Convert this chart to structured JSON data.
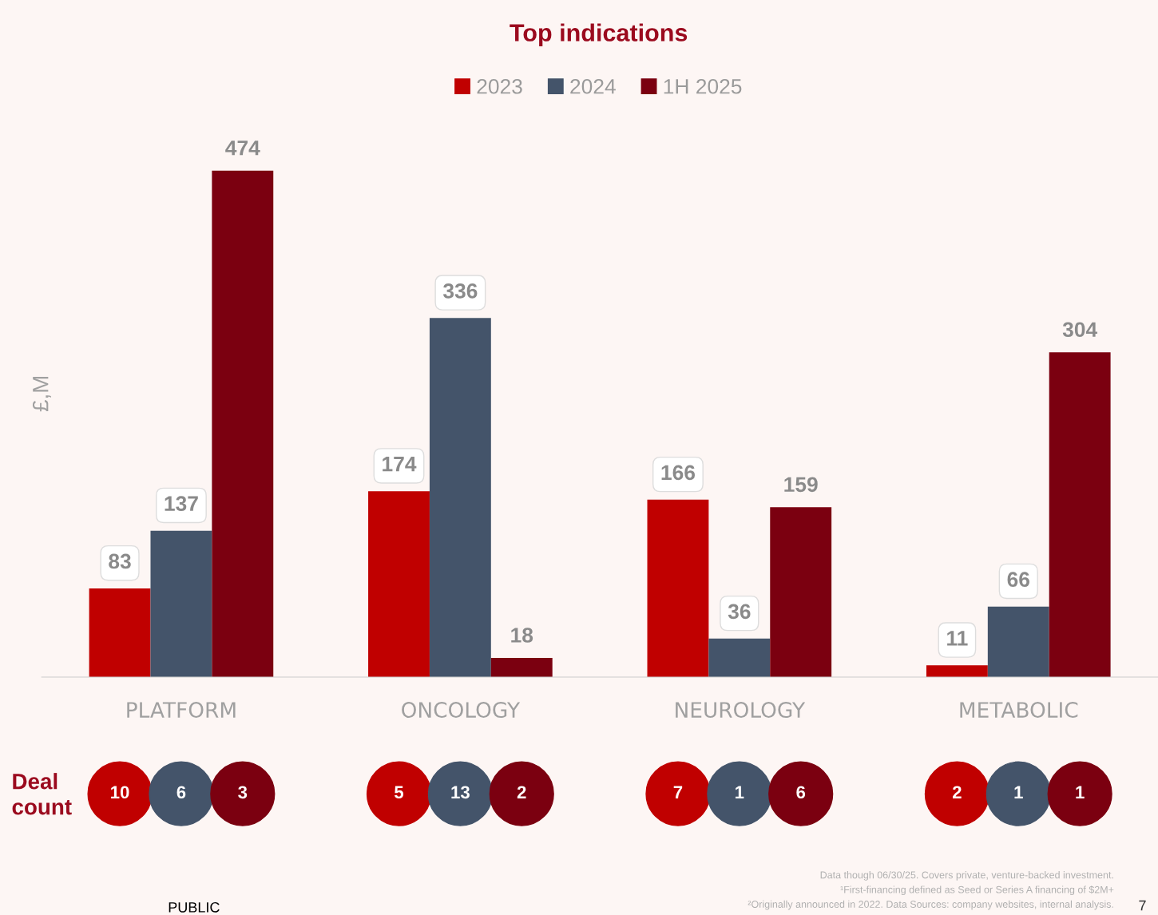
{
  "chart_data": [
    {
      "type": "bar",
      "title": "Top indications",
      "ylabel": "£,M",
      "categories": [
        "PLATFORM",
        "ONCOLOGY",
        "NEUROLOGY",
        "METABOLIC"
      ],
      "legend": "top",
      "data_labels": true,
      "series": [
        {
          "name": "2023",
          "color": "#c00000",
          "values": [
            83,
            174,
            166,
            11
          ]
        },
        {
          "name": "2024",
          "color": "#44546a",
          "values": [
            137,
            336,
            36,
            66
          ]
        },
        {
          "name": "1H 2025",
          "color": "#7b0010",
          "values": [
            474,
            18,
            159,
            304
          ]
        }
      ]
    },
    {
      "type": "other",
      "title": "Deal count",
      "categories": [
        null,
        null,
        null,
        null,
        null,
        null,
        null,
        null,
        null,
        null,
        null,
        null
      ],
      "data_labels": true,
      "values": [
        10,
        6,
        3,
        5,
        13,
        2,
        7,
        1,
        6,
        2,
        1,
        1
      ],
      "colors": [
        "#c00000",
        "#44546a",
        "#7b0010",
        "#c00000",
        "#44546a",
        "#7b0010",
        "#c00000",
        "#44546a",
        "#7b0010",
        "#c00000",
        "#44546a",
        "#7b0010"
      ],
      "annotations": [
        "Data though 06/30/25. Covers private, venture-backed investment.",
        "¹First-financing defined as Seed or Series A financing of $2M+",
        "²Originally announced in 2022. Data Sources: company websites, internal analysis.",
        "PUBLIC",
        "7"
      ]
    }
  ]
}
